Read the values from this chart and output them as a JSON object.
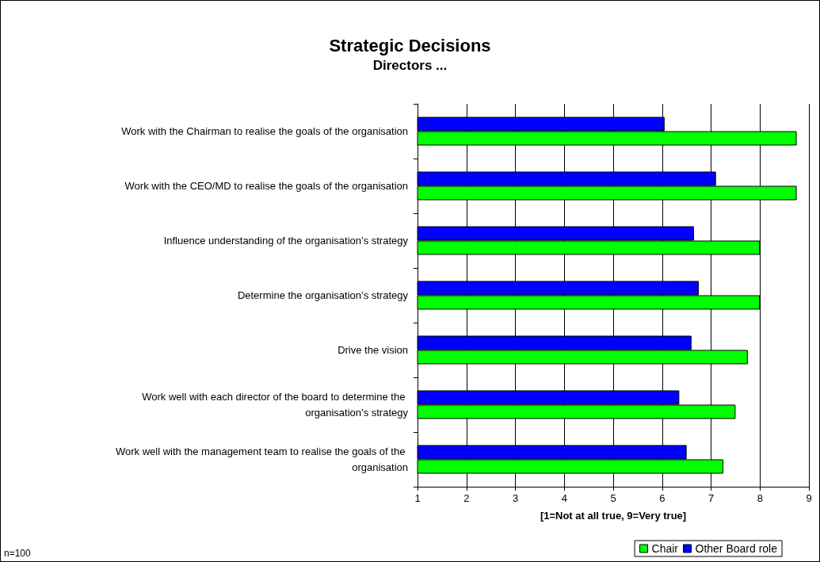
{
  "chart_data": {
    "type": "bar",
    "orientation": "horizontal",
    "title": "Strategic Decisions",
    "subtitle": "Directors ...",
    "xlabel": "[1=Not at all true, 9=Very true]",
    "categories": [
      "Work with the Chairman to realise the goals of the organisation",
      "Work with the CEO/MD to realise the goals of the organisation",
      "Influence understanding of the organisation’s strategy",
      "Determine the organisation’s strategy",
      "Drive the vision",
      "Work well with each director of the board to determine the organisation’s strategy",
      "Work well with the management team to realise the goals of the organisation"
    ],
    "series": [
      {
        "name": "Chair",
        "color": "#00ff00",
        "values": [
          8.75,
          8.75,
          8,
          8,
          7.75,
          7.5,
          7.25
        ]
      },
      {
        "name": "Other Board role",
        "color": "#0000ff",
        "values": [
          6.05,
          7.1,
          6.65,
          6.75,
          6.6,
          6.35,
          6.5
        ]
      }
    ],
    "xlim": [
      1,
      9
    ],
    "xticks": [
      1,
      2,
      3,
      4,
      5,
      6,
      7,
      8,
      9
    ],
    "grid": "x",
    "legend": "bottom right",
    "annotations": [
      "n=100"
    ]
  }
}
